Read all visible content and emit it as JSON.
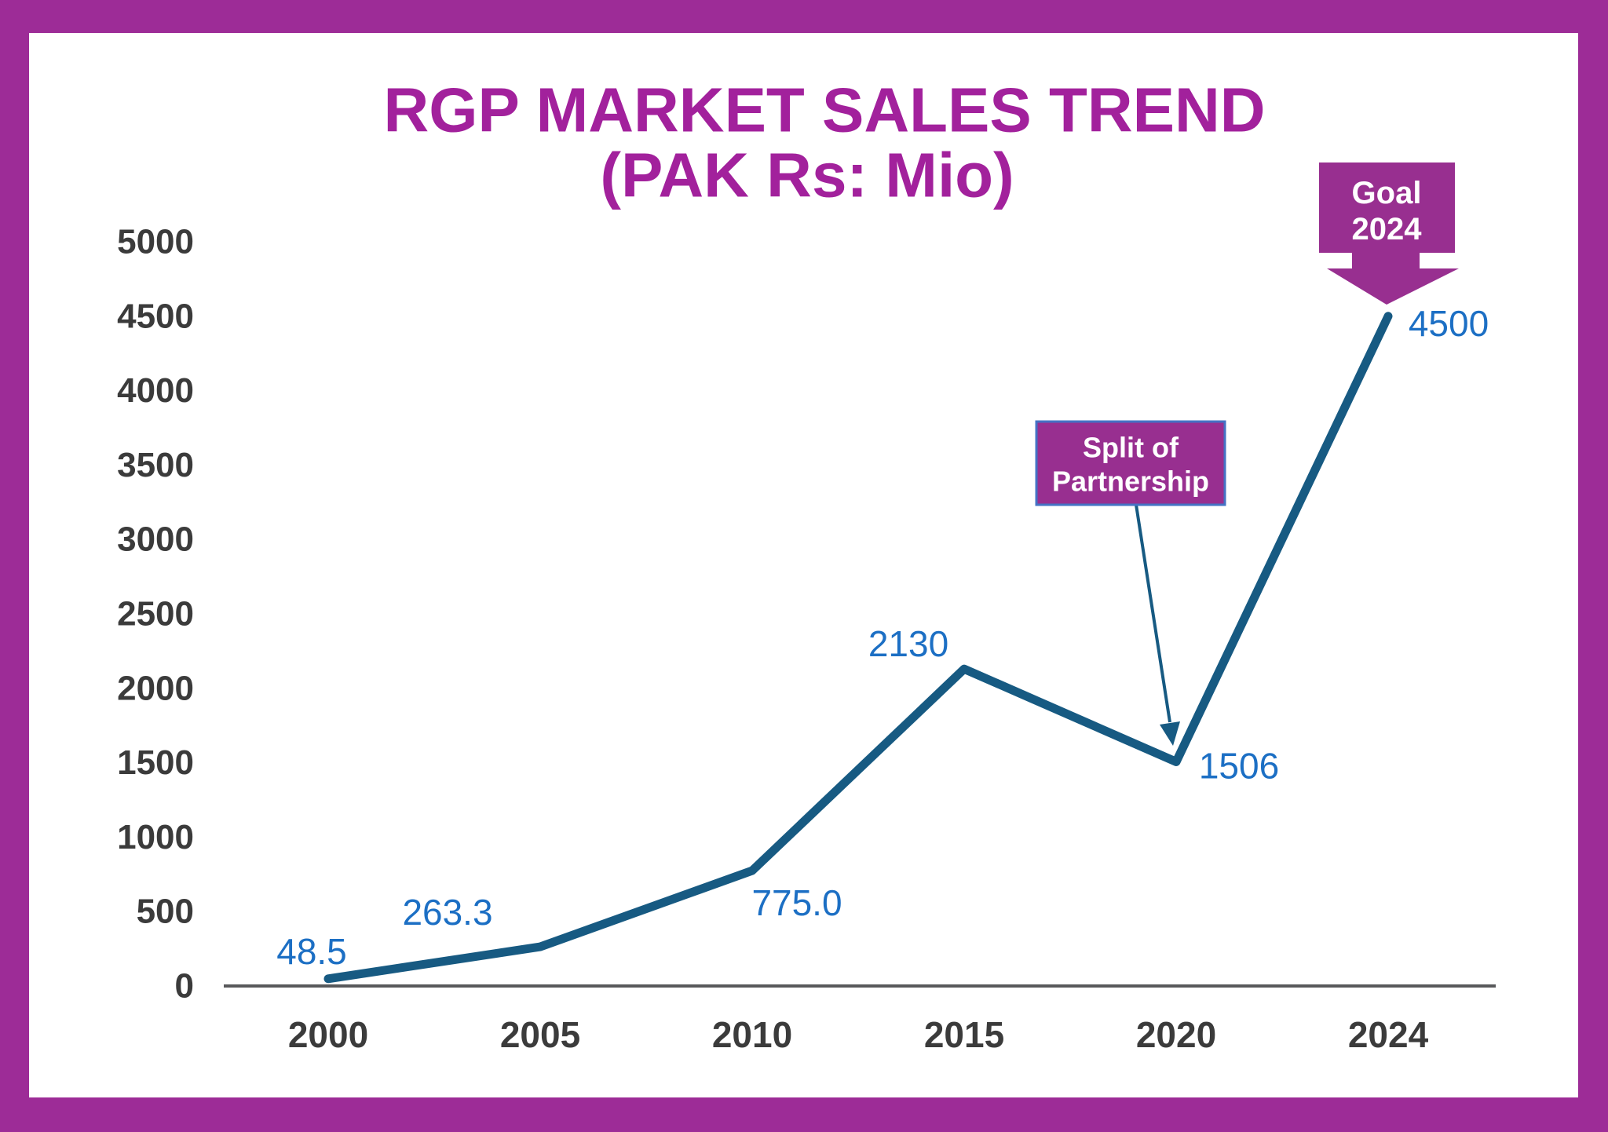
{
  "frame": {
    "border_color": "#9D2C97",
    "background": "#FFFFFF"
  },
  "title": {
    "line1": "RGP MARKET SALES TREND",
    "line2": "(PAK Rs: Mio)",
    "color": "#A2219C"
  },
  "chart_data": {
    "type": "line",
    "title": "RGP MARKET SALES TREND (PAK Rs: Mio)",
    "xlabel": "",
    "ylabel": "",
    "categories": [
      "2000",
      "2005",
      "2010",
      "2015",
      "2020",
      "2024"
    ],
    "values": [
      48.5,
      263.3,
      775.0,
      2130,
      1506,
      4500
    ],
    "data_labels": [
      "48.5",
      "263.3",
      "775.0",
      "2130",
      "1506",
      "4500"
    ],
    "y_ticks": [
      0,
      500,
      1000,
      1500,
      2000,
      2500,
      3000,
      3500,
      4000,
      4500,
      5000
    ],
    "ylim": [
      0,
      5000
    ],
    "grid": false,
    "legend_position": "none",
    "line_color": "#175A82",
    "data_label_color": "#1C6FC4",
    "axis_text_color": "#3B3B3B",
    "axis_line_color": "#58595B",
    "annotations": [
      {
        "name": "split-of-partnership",
        "line1": "Split of",
        "line2": "Partnership",
        "target_category": "2020",
        "box_fill": "#982F90",
        "box_border": "#4472C4",
        "text_color": "#FFFFFF",
        "arrow_color": "#175A82"
      },
      {
        "name": "goal-2024",
        "line1": "Goal",
        "line2": "2024",
        "target_category": "2024",
        "box_fill": "#982F90",
        "text_color": "#FFFFFF"
      }
    ]
  }
}
